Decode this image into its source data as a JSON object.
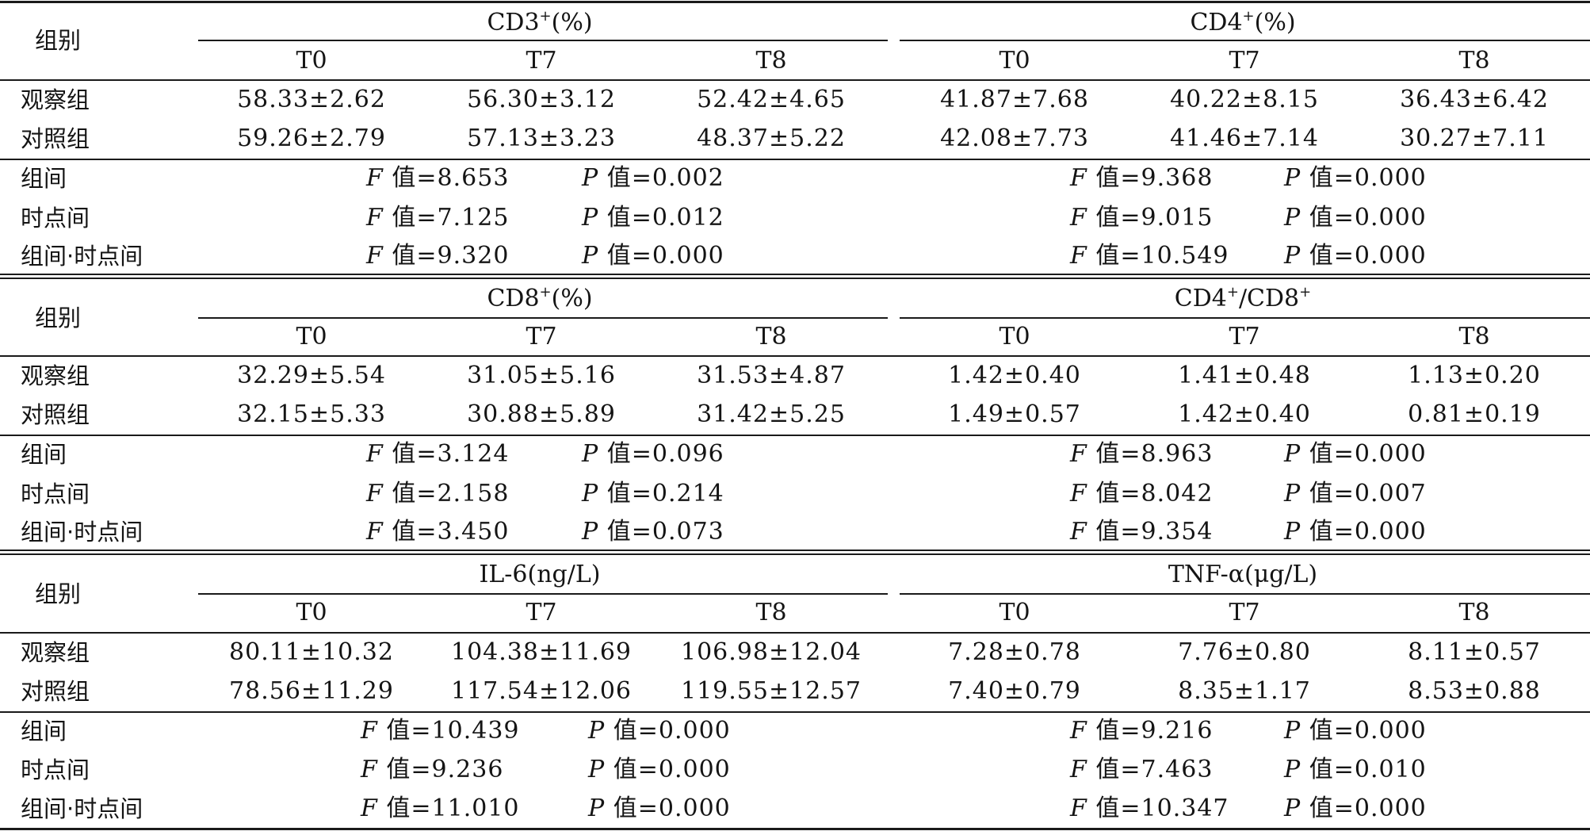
{
  "row_labels": {
    "group_header": "组别",
    "observation": "观察组",
    "control": "对照组",
    "between_groups": "组间",
    "between_timepoints": "时点间",
    "interaction": "组间·时点间"
  },
  "stat_labels": {
    "f": "F",
    "f_suffix": " 值=",
    "p": "P",
    "p_suffix": " 值="
  },
  "time_points": [
    "T0",
    "T7",
    "T8"
  ],
  "sections": [
    {
      "left": {
        "title": "CD3",
        "sup": "+",
        "unit": "(%)",
        "observation": [
          "58.33±2.62",
          "56.30±3.12",
          "52.42±4.65"
        ],
        "control": [
          "59.26±2.79",
          "57.13±3.23",
          "48.37±5.22"
        ],
        "stats": [
          {
            "f": "8.653",
            "p": "0.002"
          },
          {
            "f": "7.125",
            "p": "0.012"
          },
          {
            "f": "9.320",
            "p": "0.000"
          }
        ]
      },
      "right": {
        "title": "CD4",
        "sup": "+",
        "unit": "(%)",
        "observation": [
          "41.87±7.68",
          "40.22±8.15",
          "36.43±6.42"
        ],
        "control": [
          "42.08±7.73",
          "41.46±7.14",
          "30.27±7.11"
        ],
        "stats": [
          {
            "f": "9.368",
            "p": "0.000"
          },
          {
            "f": "9.015",
            "p": "0.000"
          },
          {
            "f": "10.549",
            "p": "0.000"
          }
        ]
      }
    },
    {
      "left": {
        "title": "CD8",
        "sup": "+",
        "unit": "(%)",
        "observation": [
          "32.29±5.54",
          "31.05±5.16",
          "31.53±4.87"
        ],
        "control": [
          "32.15±5.33",
          "30.88±5.89",
          "31.42±5.25"
        ],
        "stats": [
          {
            "f": "3.124",
            "p": "0.096"
          },
          {
            "f": "2.158",
            "p": "0.214"
          },
          {
            "f": "3.450",
            "p": "0.073"
          }
        ]
      },
      "right": {
        "title": "CD4",
        "sup": "+",
        "unit": "/CD8",
        "sup2": "+",
        "observation": [
          "1.42±0.40",
          "1.41±0.48",
          "1.13±0.20"
        ],
        "control": [
          "1.49±0.57",
          "1.42±0.40",
          "0.81±0.19"
        ],
        "stats": [
          {
            "f": "8.963",
            "p": "0.000"
          },
          {
            "f": "8.042",
            "p": "0.007"
          },
          {
            "f": "9.354",
            "p": "0.000"
          }
        ]
      }
    },
    {
      "left": {
        "title": "IL-6",
        "sup": "",
        "unit": "(ng/L)",
        "observation": [
          "80.11±10.32",
          "104.38±11.69",
          "106.98±12.04"
        ],
        "control": [
          "78.56±11.29",
          "117.54±12.06",
          "119.55±12.57"
        ],
        "stats": [
          {
            "f": "10.439",
            "p": "0.000"
          },
          {
            "f": "9.236",
            "p": "0.000"
          },
          {
            "f": "11.010",
            "p": "0.000"
          }
        ]
      },
      "right": {
        "title": "TNF-α",
        "sup": "",
        "unit": "(μg/L)",
        "observation": [
          "7.28±0.78",
          "7.76±0.80",
          "8.11±0.57"
        ],
        "control": [
          "7.40±0.79",
          "8.35±1.17",
          "8.53±0.88"
        ],
        "stats": [
          {
            "f": "9.216",
            "p": "0.000"
          },
          {
            "f": "7.463",
            "p": "0.010"
          },
          {
            "f": "10.347",
            "p": "0.000"
          }
        ]
      }
    }
  ]
}
